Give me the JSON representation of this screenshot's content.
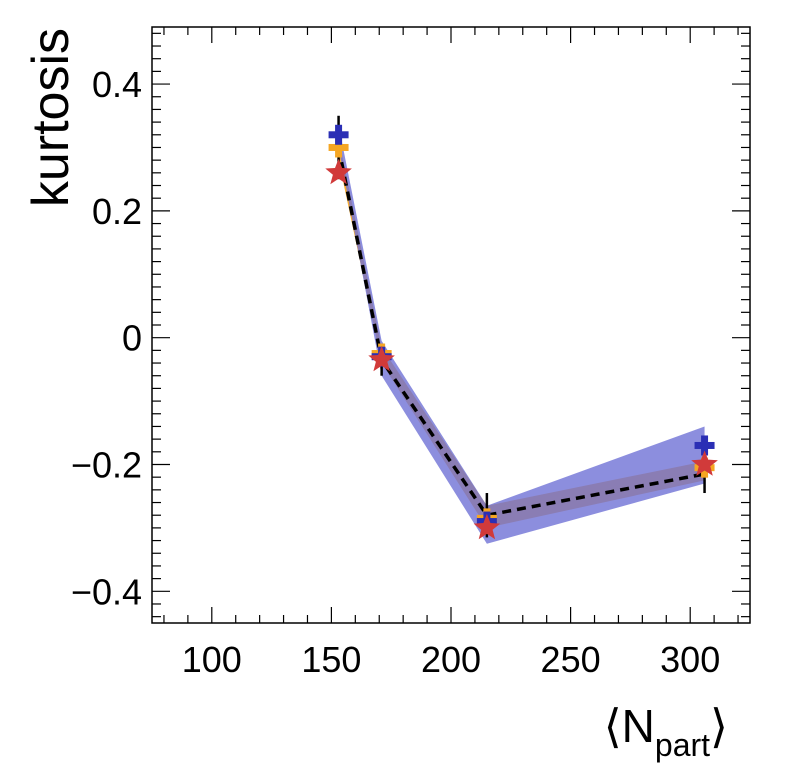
{
  "chart_data": {
    "type": "line",
    "title": "",
    "xlabel": "⟨N",
    "xlabel_sub": "part",
    "xlabel_close": "⟩",
    "ylabel": "kurtosis",
    "xlim": [
      75,
      325
    ],
    "ylim": [
      -0.45,
      0.49
    ],
    "x_ticks": [
      100,
      150,
      200,
      250,
      300
    ],
    "x_tick_labels": [
      "100",
      "150",
      "200",
      "250",
      "300"
    ],
    "y_ticks": [
      -0.4,
      -0.2,
      0,
      0.2,
      0.4
    ],
    "y_tick_labels": [
      "−0.4",
      "−0.2",
      "0",
      "0.2",
      "0.4"
    ],
    "grid": false,
    "bands": [
      {
        "name": "orange band",
        "color": "#f5a623",
        "x": [
          153,
          171,
          215,
          306
        ],
        "lower": [
          0.28,
          -0.04,
          -0.3,
          -0.225
        ],
        "upper": [
          0.315,
          -0.015,
          -0.265,
          -0.195
        ]
      },
      {
        "name": "blue band",
        "color": "#6f72d6",
        "x": [
          153,
          171,
          215,
          306
        ],
        "lower": [
          0.3,
          -0.06,
          -0.325,
          -0.23
        ],
        "upper": [
          0.335,
          -0.005,
          -0.265,
          -0.14
        ]
      }
    ],
    "series": [
      {
        "name": "dashed curve",
        "color": "#000000",
        "style": "dashed",
        "x": [
          153,
          171,
          215,
          306
        ],
        "values": [
          0.3,
          -0.035,
          -0.28,
          -0.215
        ],
        "yerr": [
          0.05,
          0.025,
          0.035,
          0.03
        ]
      },
      {
        "name": "orange markers",
        "color": "#f5a623",
        "marker": "cross",
        "x": [
          153,
          171,
          215,
          306
        ],
        "values": [
          0.3,
          -0.025,
          -0.285,
          -0.205
        ]
      },
      {
        "name": "blue markers",
        "color": "#2b2fb5",
        "marker": "cross",
        "x": [
          153,
          171,
          215,
          306
        ],
        "values": [
          0.32,
          -0.03,
          -0.29,
          -0.17
        ]
      },
      {
        "name": "red star markers",
        "color": "#d13a3a",
        "marker": "star",
        "x": [
          153,
          171,
          215,
          306
        ],
        "values": [
          0.26,
          -0.035,
          -0.3,
          -0.2
        ]
      }
    ]
  }
}
